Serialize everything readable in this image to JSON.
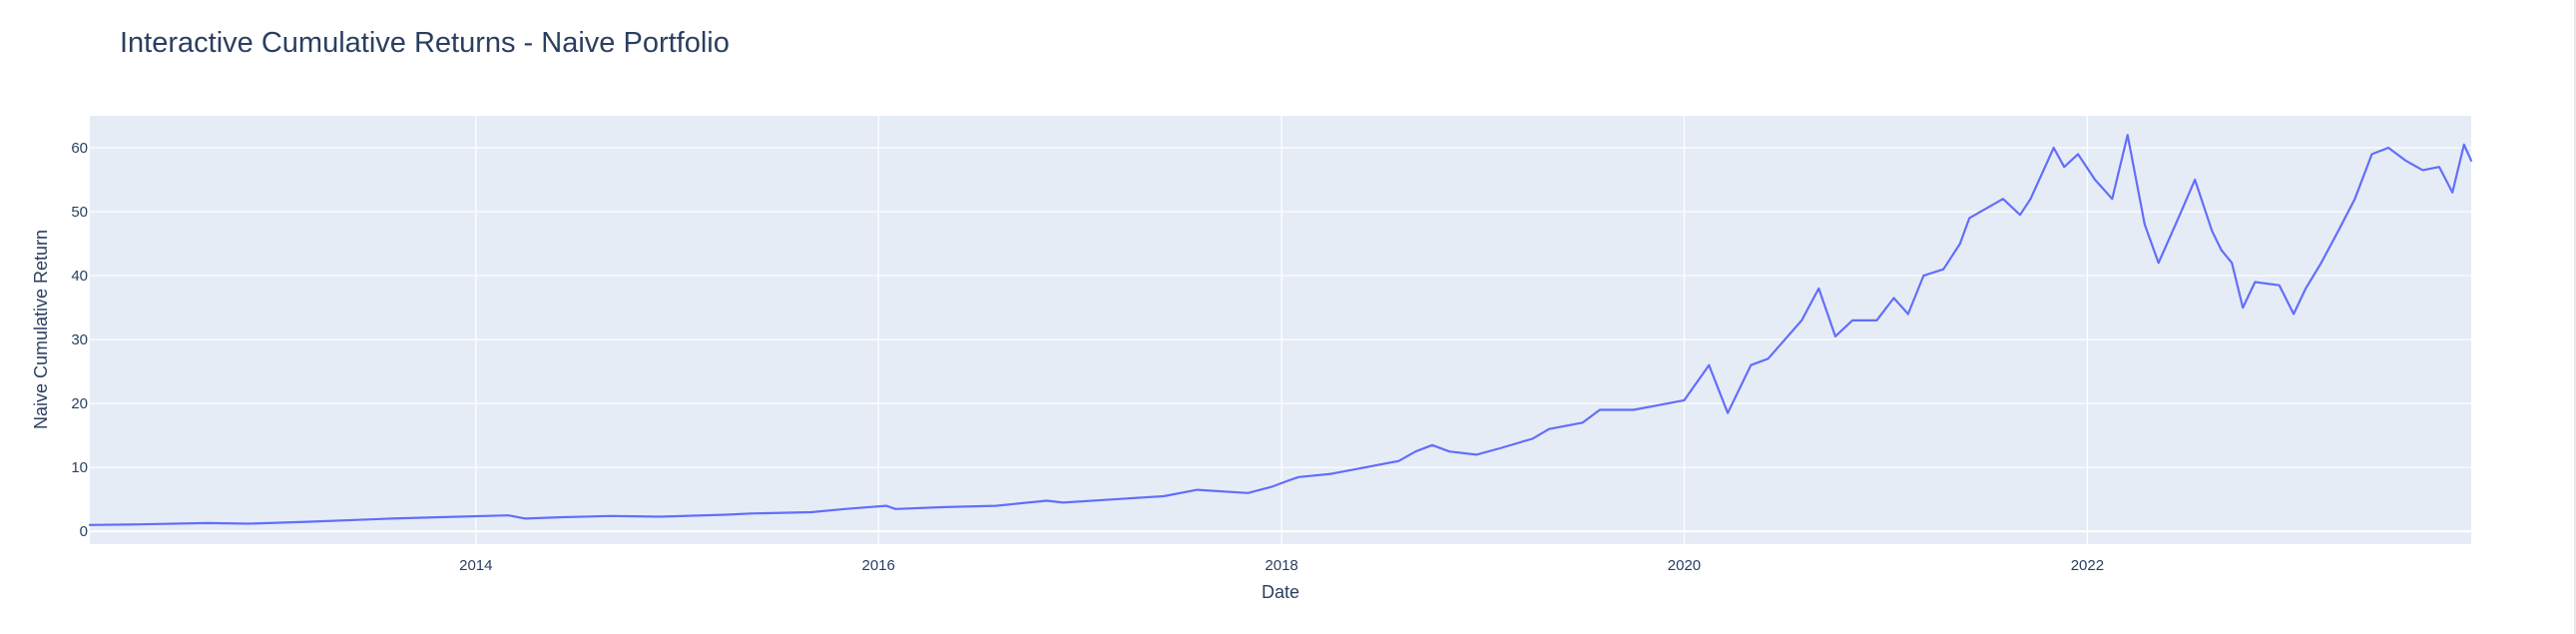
{
  "chart_data": {
    "type": "line",
    "title": "Interactive Cumulative Returns - Naive Portfolio",
    "xlabel": "Date",
    "ylabel": "Naive Cumulative Return",
    "x_range": [
      "2012-02-01",
      "2023-11-28"
    ],
    "ylim": [
      -2,
      65
    ],
    "x_ticks": [
      "2014",
      "2016",
      "2018",
      "2020",
      "2022"
    ],
    "y_ticks": [
      0,
      10,
      20,
      30,
      40,
      50,
      60
    ],
    "grid": true,
    "legend": "none",
    "line_color": "#636efa",
    "plot_bg": "#e5ecf6",
    "series": [
      {
        "x": [
          "2012-02-01",
          "2012-05-01",
          "2012-09-01",
          "2012-11-15",
          "2013-03-01",
          "2013-06-01",
          "2013-08-01",
          "2013-12-01",
          "2014-03-01",
          "2014-04-01",
          "2014-06-01",
          "2014-09-01",
          "2014-12-01",
          "2015-04-01",
          "2015-05-15",
          "2015-09-01",
          "2015-11-01",
          "2016-01-15",
          "2016-02-01",
          "2016-05-01",
          "2016-08-01",
          "2016-11-01",
          "2016-12-01",
          "2017-03-01",
          "2017-06-01",
          "2017-08-01",
          "2017-11-01",
          "2017-12-15",
          "2018-01-15",
          "2018-02-01",
          "2018-04-01",
          "2018-06-01",
          "2018-08-01",
          "2018-09-01",
          "2018-10-01",
          "2018-11-01",
          "2018-12-20",
          "2019-02-01",
          "2019-04-01",
          "2019-05-01",
          "2019-07-01",
          "2019-08-01",
          "2019-10-01",
          "2019-11-01",
          "2020-01-01",
          "2020-02-15",
          "2020-03-20",
          "2020-05-01",
          "2020-06-01",
          "2020-08-01",
          "2020-09-01",
          "2020-10-01",
          "2020-11-01",
          "2020-12-15",
          "2021-01-15",
          "2021-02-10",
          "2021-03-10",
          "2021-04-15",
          "2021-05-15",
          "2021-06-01",
          "2021-08-01",
          "2021-09-01",
          "2021-09-20",
          "2021-11-01",
          "2021-11-20",
          "2021-12-15",
          "2022-01-15",
          "2022-02-15",
          "2022-03-15",
          "2022-04-15",
          "2022-05-10",
          "2022-06-15",
          "2022-07-15",
          "2022-08-15",
          "2022-09-01",
          "2022-09-20",
          "2022-10-10",
          "2022-11-01",
          "2022-12-15",
          "2023-01-10",
          "2023-02-01",
          "2023-03-01",
          "2023-04-01",
          "2023-05-01",
          "2023-06-01",
          "2023-07-01",
          "2023-08-01",
          "2023-09-01",
          "2023-10-01",
          "2023-10-25",
          "2023-11-15",
          "2023-11-28"
        ],
        "y": [
          1.0,
          1.1,
          1.3,
          1.2,
          1.5,
          1.8,
          2.0,
          2.3,
          2.5,
          2.0,
          2.2,
          2.4,
          2.3,
          2.6,
          2.8,
          3.0,
          3.5,
          4.0,
          3.5,
          3.8,
          4.0,
          4.8,
          4.5,
          5.0,
          5.5,
          6.5,
          6.0,
          7.0,
          8.0,
          8.5,
          9.0,
          10.0,
          11.0,
          12.5,
          13.5,
          12.5,
          12.0,
          13.0,
          14.5,
          16.0,
          17.0,
          19.0,
          19.0,
          19.5,
          20.5,
          26.0,
          18.5,
          26.0,
          27.0,
          33.0,
          38.0,
          30.5,
          33.0,
          33.0,
          36.5,
          34.0,
          40.0,
          41.0,
          45.0,
          49.0,
          52.0,
          49.5,
          52.0,
          60.0,
          57.0,
          59.0,
          55.0,
          52.0,
          62.0,
          48.0,
          42.0,
          49.0,
          55.0,
          47.0,
          44.0,
          42.0,
          35.0,
          39.0,
          38.5,
          34.0,
          38.0,
          42.0,
          47.0,
          52.0,
          59.0,
          60.0,
          58.0,
          56.5,
          57.0,
          53.0,
          60.5,
          58.0
        ]
      }
    ]
  }
}
